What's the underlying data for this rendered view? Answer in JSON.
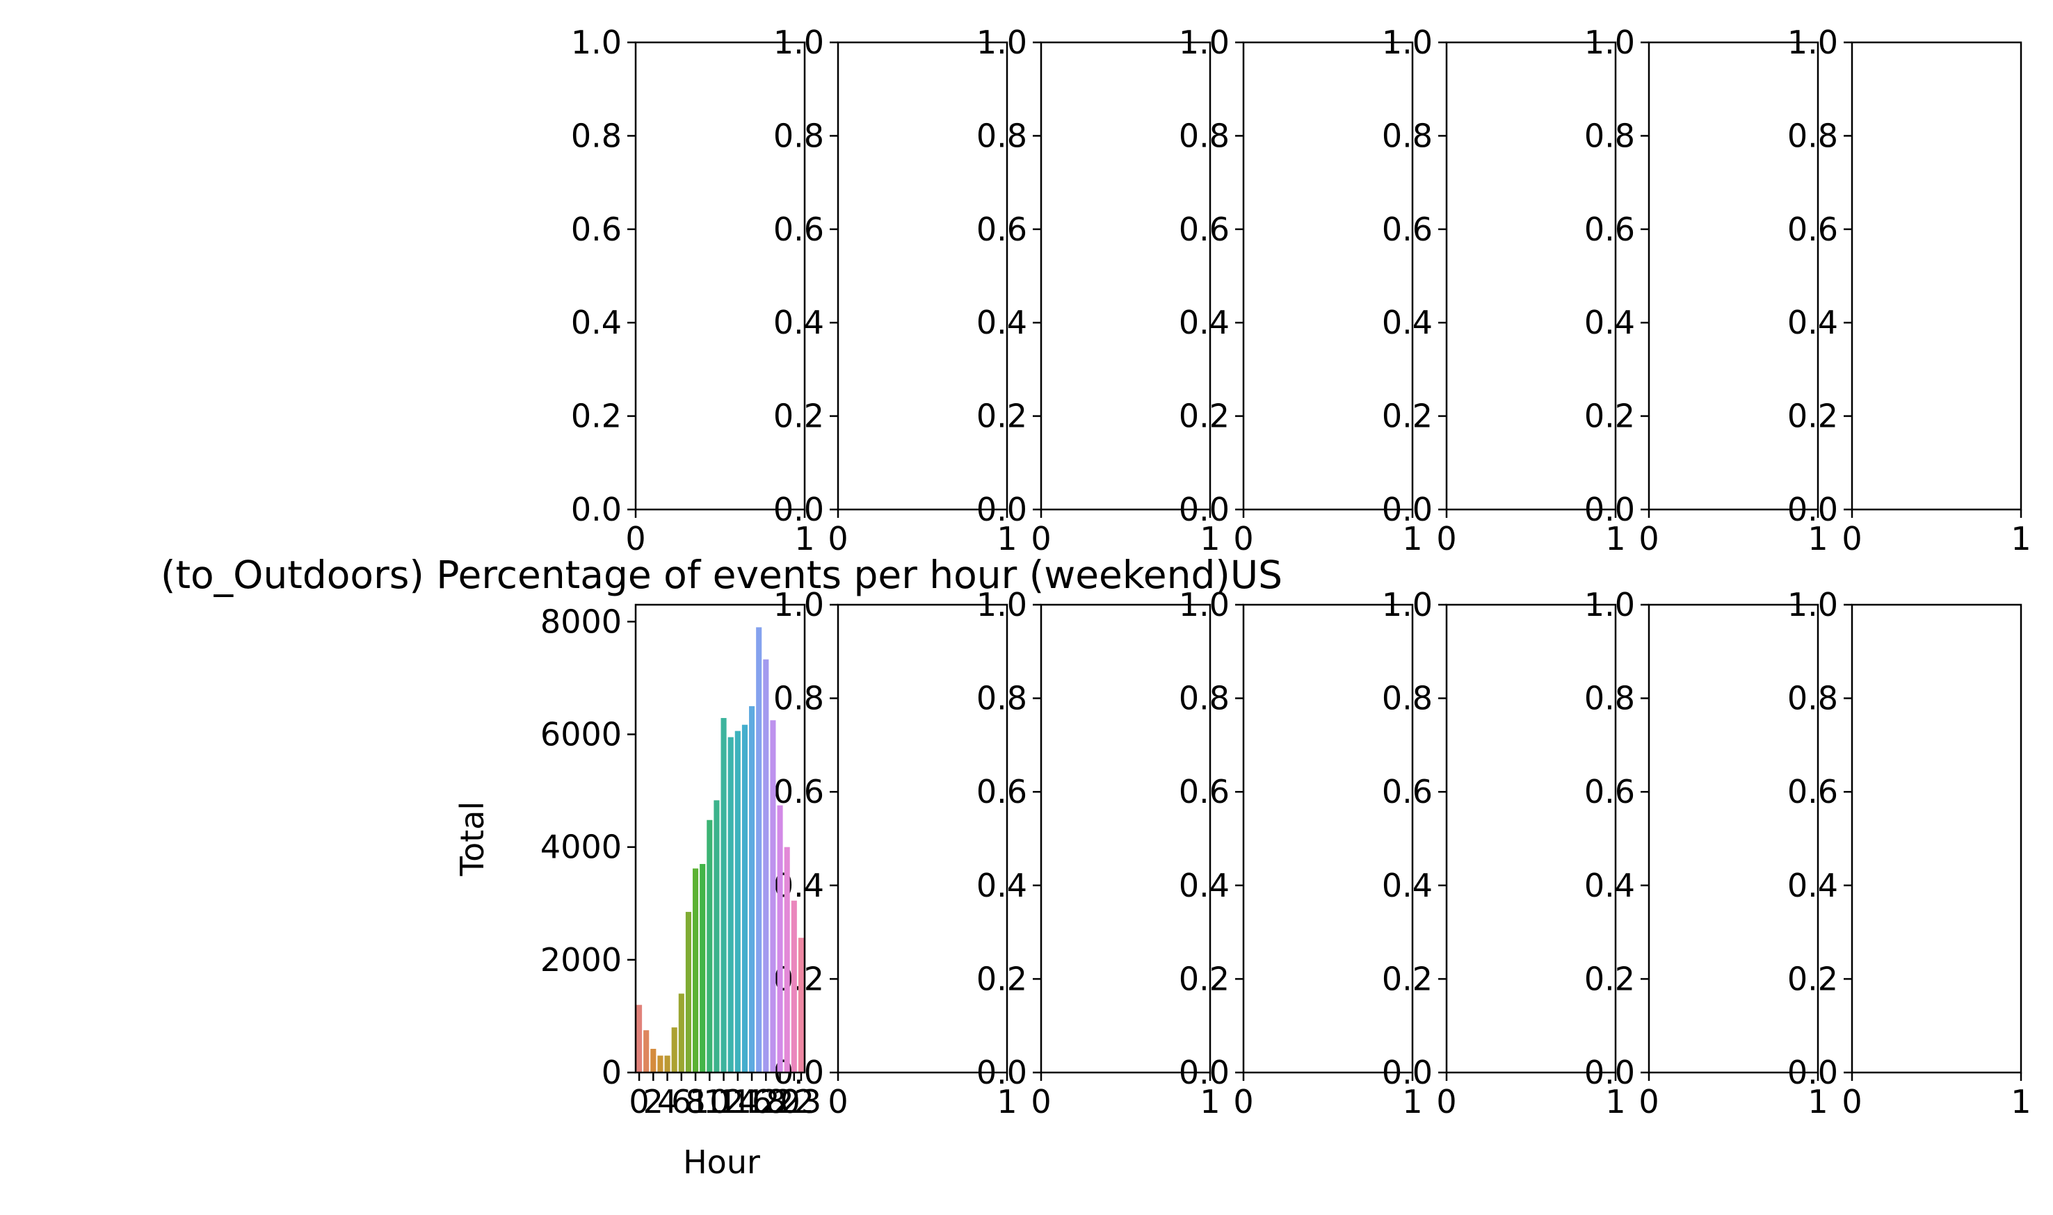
{
  "chart_data": {
    "type": "bar",
    "grid": "2x7 subplots",
    "empty_axes": {
      "ylim": [
        0,
        1
      ],
      "xlim": [
        0,
        1
      ],
      "y_ticks": [
        "0.0",
        "0.2",
        "0.4",
        "0.6",
        "0.8",
        "1.0"
      ],
      "x_ticks": [
        "0",
        "1"
      ]
    },
    "main": {
      "title": "(to_Outdoors) Percentage of events per hour (weekend)US",
      "xlabel": "Hour",
      "ylabel": "Total",
      "ylim": [
        0,
        8300
      ],
      "y_ticks": [
        0,
        2000,
        4000,
        6000,
        8000
      ],
      "x_ticks": [
        "0",
        "2",
        "4",
        "6",
        "8",
        "10",
        "12",
        "14",
        "16",
        "18",
        "20",
        "22",
        "23"
      ],
      "categories": [
        "0",
        "1",
        "2",
        "3",
        "4",
        "5",
        "6",
        "7",
        "8",
        "9",
        "10",
        "11",
        "12",
        "13",
        "14",
        "15",
        "16",
        "17",
        "18",
        "19",
        "20",
        "21",
        "22",
        "23"
      ],
      "values": [
        1200,
        750,
        420,
        300,
        300,
        800,
        1400,
        2850,
        3620,
        3700,
        4480,
        4830,
        6290,
        5950,
        6060,
        6170,
        6500,
        7900,
        7330,
        6250,
        4740,
        4000,
        3050,
        2390
      ],
      "colors": [
        "#e1827a",
        "#de865e",
        "#d58b3c",
        "#c99535",
        "#bc9a34",
        "#aca131",
        "#9aa631",
        "#7fac33",
        "#5bb233",
        "#43b548",
        "#3cb474",
        "#3cb38c",
        "#3db49d",
        "#3cb3ad",
        "#3db2bd",
        "#44aecd",
        "#5eaae0",
        "#85a2ee",
        "#a39aef",
        "#bd92ee",
        "#d38ae7",
        "#e389d7",
        "#ea87bd",
        "#ee87a3"
      ]
    }
  }
}
